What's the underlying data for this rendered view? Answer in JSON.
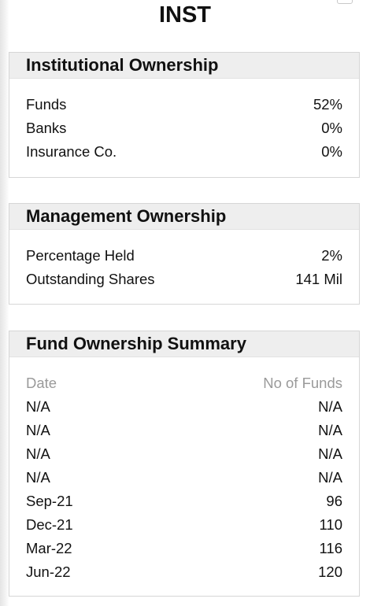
{
  "ticker": "INST",
  "institutional": {
    "title": "Institutional Ownership",
    "rows": [
      {
        "label": "Funds",
        "value": "52%"
      },
      {
        "label": "Banks",
        "value": "0%"
      },
      {
        "label": "Insurance Co.",
        "value": "0%"
      }
    ]
  },
  "management": {
    "title": "Management Ownership",
    "rows": [
      {
        "label": "Percentage Held",
        "value": "2%"
      },
      {
        "label": "Outstanding Shares",
        "value": "141 Mil"
      }
    ]
  },
  "fund_summary": {
    "title": "Fund Ownership Summary",
    "header": {
      "date": "Date",
      "funds": "No of Funds"
    },
    "rows": [
      {
        "date": "N/A",
        "funds": "N/A"
      },
      {
        "date": "N/A",
        "funds": "N/A"
      },
      {
        "date": "N/A",
        "funds": "N/A"
      },
      {
        "date": "N/A",
        "funds": "N/A"
      },
      {
        "date": "Sep-21",
        "funds": "96"
      },
      {
        "date": "Dec-21",
        "funds": "110"
      },
      {
        "date": "Mar-22",
        "funds": "116"
      },
      {
        "date": "Jun-22",
        "funds": "120"
      }
    ]
  }
}
